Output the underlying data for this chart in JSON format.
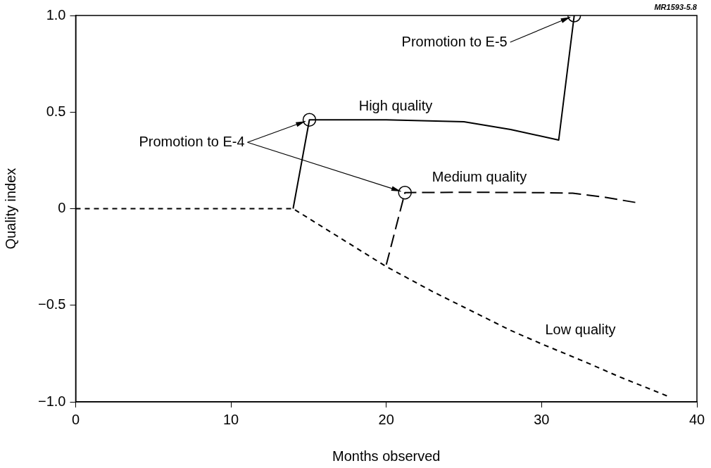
{
  "chart_data": {
    "type": "line",
    "xlabel": "Months observed",
    "ylabel": "Quality index",
    "xlim": [
      0,
      40
    ],
    "xticks": [
      0,
      10,
      20,
      30,
      40
    ],
    "ylim": [
      -1,
      1
    ],
    "yticks": [
      {
        "value": -1,
        "label": "−1.0"
      },
      {
        "value": -0.5,
        "label": "−0.5"
      },
      0,
      0.5,
      {
        "value": 1,
        "label": "1.0"
      }
    ],
    "grid": false,
    "legend": false,
    "marker": "none",
    "series": [
      {
        "name": "High quality",
        "color": "#000000",
        "line_style": "solid",
        "x": [
          14,
          15.05,
          20,
          25,
          28,
          31.1,
          32.1
        ],
        "values": [
          0,
          0.46,
          0.46,
          0.45,
          0.41,
          0.355,
          1.0
        ]
      },
      {
        "name": "Medium quality",
        "color": "#000000",
        "line_style": "dashed",
        "x": [
          20,
          21.2,
          25,
          30,
          32,
          34,
          36.2
        ],
        "values": [
          -0.29,
          0.083,
          0.085,
          0.083,
          0.08,
          0.06,
          0.03
        ]
      },
      {
        "name": "Low quality",
        "color": "#000000",
        "line_style": "dotted",
        "x": [
          0,
          5,
          10,
          14,
          15,
          17,
          20,
          23,
          25,
          28,
          30,
          33,
          35,
          38.1
        ],
        "values": [
          0,
          0,
          0,
          0,
          -0.05,
          -0.15,
          -0.3,
          -0.43,
          -0.51,
          -0.63,
          -0.7,
          -0.8,
          -0.87,
          -0.97
        ]
      },
      {
        "type": "scatter",
        "color": "#000000",
        "marker": "circle",
        "x": [
          15.05,
          21.2,
          32.1
        ],
        "values": [
          0.46,
          0.083,
          1.0
        ]
      }
    ],
    "annotations": [
      {
        "text": "Promotion to E-4",
        "x": 15.05,
        "y": 0.46
      },
      {
        "text": "Promotion to E-5",
        "x": 32.1,
        "y": 1.0
      },
      "MR1593-5.8"
    ]
  }
}
